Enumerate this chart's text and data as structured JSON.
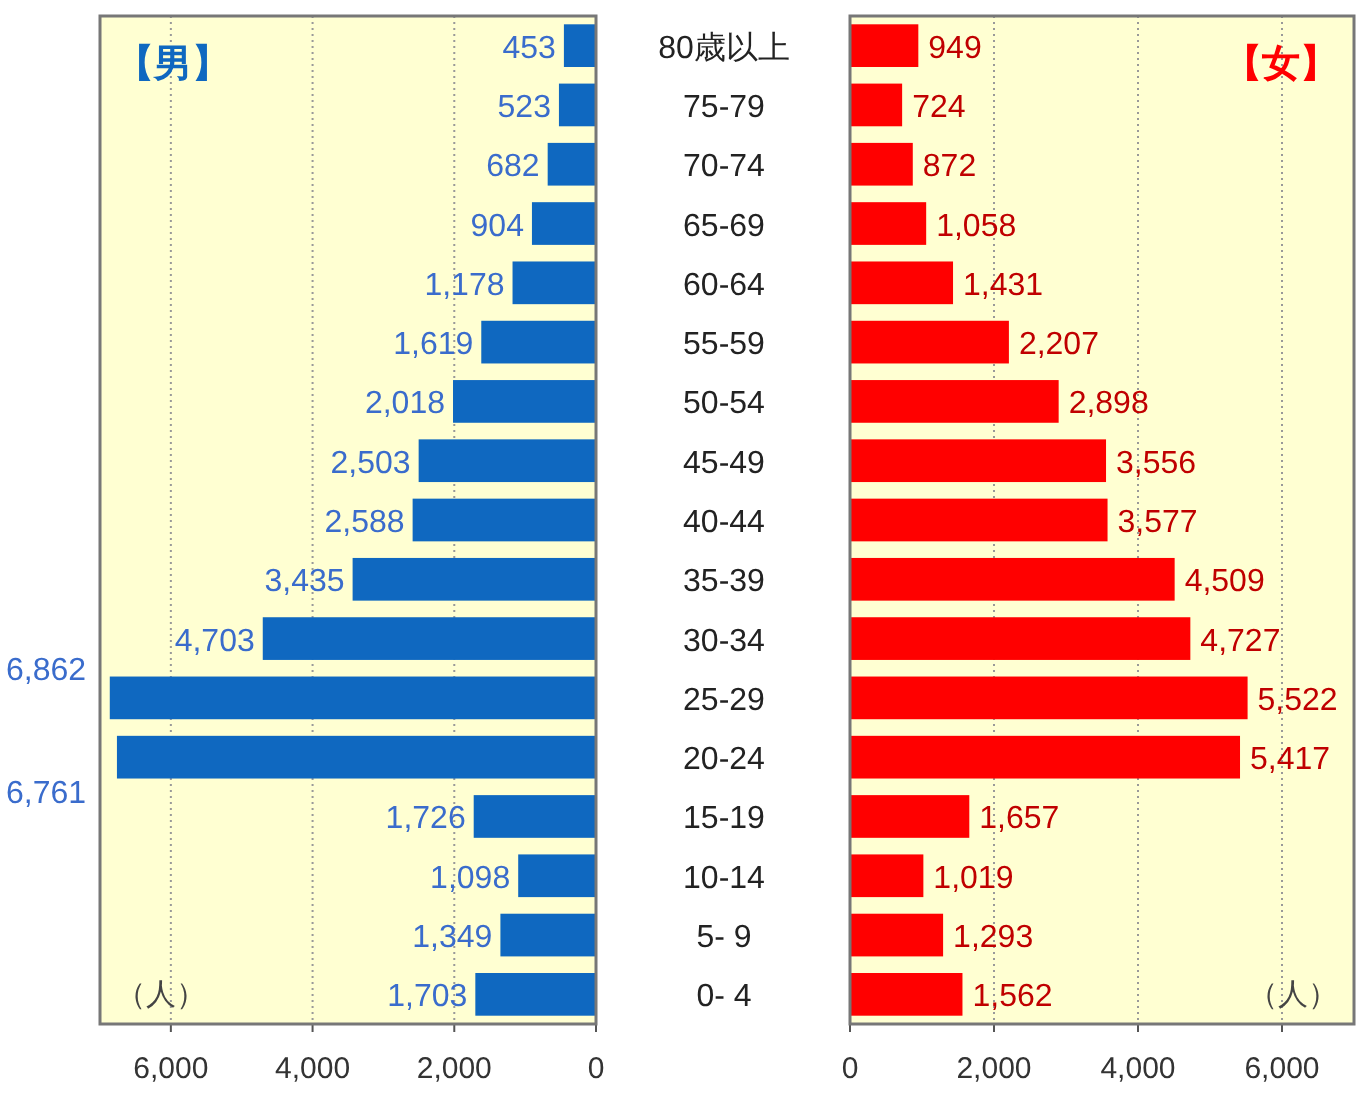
{
  "chart_data": [
    {
      "type": "bar",
      "orientation": "horizontal",
      "categories": [
        null,
        null,
        null,
        null,
        null,
        null,
        null,
        null,
        null,
        null,
        null,
        null,
        null,
        null,
        null,
        null,
        null
      ],
      "value_labels": [
        "453",
        "523",
        "682",
        "904",
        "1,178",
        "1,619",
        "2,018",
        "2,503",
        "2,588",
        "3,435",
        "4,703",
        "6,862",
        "6,761",
        "1,726",
        "1,098",
        "1,349",
        "1,703"
      ],
      "values": [
        453,
        523,
        682,
        904,
        1178,
        1619,
        2018,
        2503,
        2588,
        3435,
        4703,
        6862,
        6761,
        1726,
        1098,
        1349,
        1703
      ],
      "color": "#0f68c0",
      "xlim": [
        7000,
        0
      ],
      "xticks": [
        {
          "value": 6000,
          "label": "6,000"
        },
        {
          "value": 4000,
          "label": "4,000"
        },
        {
          "value": 2000,
          "label": "2,000"
        },
        0
      ],
      "grid": "x",
      "tick_labels": "x",
      "annotations": [
        "【男】",
        "（人）"
      ]
    },
    {
      "type": "bar",
      "orientation": "horizontal",
      "categories": [
        "80歳以上",
        "75-79",
        "70-74",
        "65-69",
        "60-64",
        "55-59",
        "50-54",
        "45-49",
        "40-44",
        "35-39",
        "30-34",
        "25-29",
        "20-24",
        "15-19",
        "10-14",
        "5- 9",
        "0- 4"
      ],
      "value_labels": [
        "949",
        "724",
        "872",
        "1,058",
        "1,431",
        "2,207",
        "2,898",
        "3,556",
        "3,577",
        "4,509",
        "4,727",
        "5,522",
        "5,417",
        "1,657",
        "1,019",
        "1,293",
        "1,562"
      ],
      "values": [
        949,
        724,
        872,
        1058,
        1431,
        2207,
        2898,
        3556,
        3577,
        4509,
        4727,
        5522,
        5417,
        1657,
        1019,
        1293,
        1562
      ],
      "color": "#ff0000",
      "xlim": [
        0,
        7000
      ],
      "xticks": [
        0,
        {
          "value": 2000,
          "label": "2,000"
        },
        {
          "value": 4000,
          "label": "4,000"
        },
        {
          "value": 6000,
          "label": "6,000"
        }
      ],
      "grid": "x",
      "annotations": [
        "【女】",
        "（人）"
      ]
    }
  ]
}
